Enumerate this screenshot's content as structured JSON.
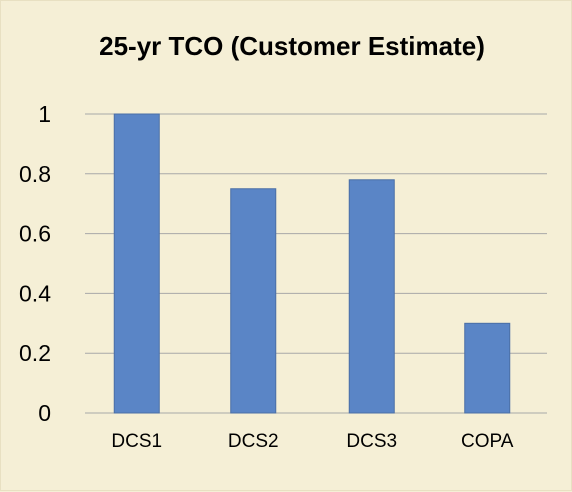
{
  "chart_data": {
    "type": "bar",
    "title": "25-yr TCO (Customer Estimate)",
    "xlabel": "",
    "ylabel": "",
    "categories": [
      "DCS1",
      "DCS2",
      "DCS3",
      "COPA"
    ],
    "values": [
      1.0,
      0.75,
      0.78,
      0.3
    ],
    "ylim": [
      0,
      1
    ],
    "yticks": [
      0,
      0.2,
      0.4,
      0.6,
      0.8,
      1
    ],
    "ytick_labels": [
      "0",
      "0.2",
      "0.4",
      "0.6",
      "0.8",
      "1"
    ],
    "grid": true,
    "legend": "none",
    "colors": {
      "bar": "#5a85c6",
      "bar_edge": "#4a6fa5",
      "grid": "#a8a8a8",
      "background": "#f5efd6"
    }
  }
}
